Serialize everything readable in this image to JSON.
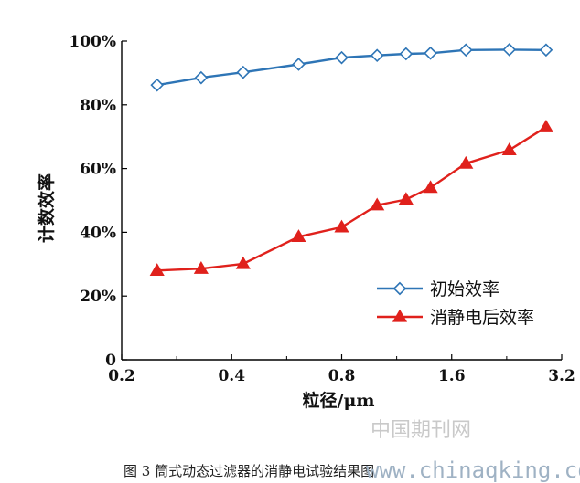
{
  "chart_data": {
    "type": "line",
    "x_scale": "log2",
    "x_tick_values": [
      0.2,
      0.4,
      0.8,
      1.6,
      3.2
    ],
    "x_tick_labels": [
      "0.2",
      "0.4",
      "0.8",
      "1.6",
      "3.2"
    ],
    "xlim": [
      0.2,
      3.2
    ],
    "ylim": [
      0,
      100
    ],
    "y_tick_values": [
      0,
      20,
      40,
      60,
      80,
      100
    ],
    "y_tick_labels": [
      "0",
      "20%",
      "40%",
      "60%",
      "80%",
      "100%"
    ],
    "xlabel": "粒径/μm",
    "ylabel": "计数效率",
    "grid": false,
    "legend_position": "bottom-right",
    "series": [
      {
        "name": "初始效率",
        "color": "#2e75b6",
        "marker": "diamond-open",
        "points": [
          [
            0.25,
            86.2
          ],
          [
            0.33,
            88.5
          ],
          [
            0.43,
            90.2
          ],
          [
            0.61,
            92.7
          ],
          [
            0.8,
            94.8
          ],
          [
            1.0,
            95.5
          ],
          [
            1.2,
            96.0
          ],
          [
            1.4,
            96.2
          ],
          [
            1.75,
            97.2
          ],
          [
            2.3,
            97.3
          ],
          [
            2.9,
            97.2
          ]
        ]
      },
      {
        "name": "消静电后效率",
        "color": "#e0211c",
        "marker": "triangle-filled",
        "points": [
          [
            0.25,
            28.0
          ],
          [
            0.33,
            28.6
          ],
          [
            0.43,
            30.1
          ],
          [
            0.61,
            38.6
          ],
          [
            0.8,
            41.6
          ],
          [
            1.0,
            48.5
          ],
          [
            1.2,
            50.3
          ],
          [
            1.4,
            54.0
          ],
          [
            1.75,
            61.6
          ],
          [
            2.3,
            65.8
          ],
          [
            2.9,
            73.0
          ]
        ]
      }
    ]
  },
  "caption": "图 3   筒式动态过滤器的消静电试验结果图",
  "watermark": {
    "site_name": "中国期刊网",
    "url": "www.chinaqking.com"
  }
}
